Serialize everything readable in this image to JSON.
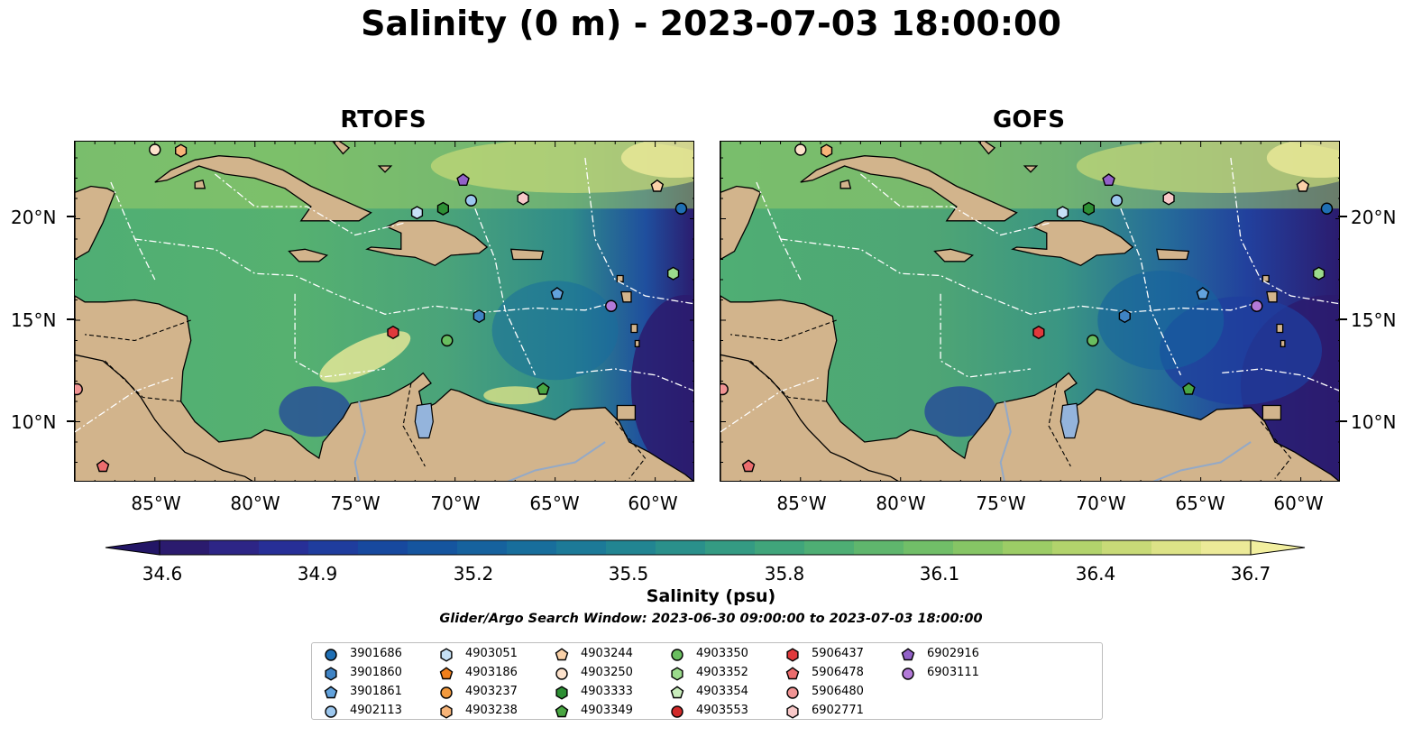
{
  "title": "Salinity (0 m) - 2023-07-03 18:00:00",
  "panels": [
    {
      "name": "RTOFS"
    },
    {
      "name": "GOFS"
    }
  ],
  "lat_ticks": [
    "20°N",
    "15°N",
    "10°N"
  ],
  "lon_ticks": [
    "85°W",
    "80°W",
    "75°W",
    "70°W",
    "65°W",
    "60°W"
  ],
  "colorbar": {
    "label": "Salinity (psu)",
    "ticks": [
      "34.6",
      "34.9",
      "35.2",
      "35.5",
      "35.8",
      "36.1",
      "36.4",
      "36.7"
    ],
    "colors": [
      "#2b1b6e",
      "#2d2586",
      "#272f97",
      "#1f3d9e",
      "#17499f",
      "#15559f",
      "#16629e",
      "#186e9c",
      "#1c7a98",
      "#228592",
      "#2a908b",
      "#349b83",
      "#40a57b",
      "#4eae74",
      "#5fb66d",
      "#71be68",
      "#86c565",
      "#9ccc66",
      "#b2d36c",
      "#c8da77",
      "#dde387",
      "#ecea98"
    ],
    "under_color": "#231666",
    "over_color": "#f2ef9f"
  },
  "search_window": "Glider/Argo Search Window: 2023-06-30 09:00:00 to 2023-07-03 18:00:00",
  "legend": [
    {
      "id": "3901686",
      "marker": "circle",
      "color": "#1f6fb4"
    },
    {
      "id": "3901860",
      "marker": "hexagon",
      "color": "#3f83c4"
    },
    {
      "id": "3901861",
      "marker": "pentagon",
      "color": "#62a2dc"
    },
    {
      "id": "4902113",
      "marker": "circle",
      "color": "#9cc7ee"
    },
    {
      "id": "4903051",
      "marker": "hexagon",
      "color": "#c6e1f6"
    },
    {
      "id": "4903186",
      "marker": "pentagon",
      "color": "#f07f1b"
    },
    {
      "id": "4903237",
      "marker": "circle",
      "color": "#f39a3e"
    },
    {
      "id": "4903238",
      "marker": "hexagon",
      "color": "#f7b478"
    },
    {
      "id": "4903244",
      "marker": "pentagon",
      "color": "#fad1a8"
    },
    {
      "id": "4903250",
      "marker": "circle",
      "color": "#fde2cc"
    },
    {
      "id": "4903333",
      "marker": "hexagon",
      "color": "#2d8f34"
    },
    {
      "id": "4903349",
      "marker": "pentagon",
      "color": "#49a642"
    },
    {
      "id": "4903350",
      "marker": "circle",
      "color": "#69be5f"
    },
    {
      "id": "4903352",
      "marker": "hexagon",
      "color": "#9bdb8c"
    },
    {
      "id": "4903354",
      "marker": "pentagon",
      "color": "#c9edbc"
    },
    {
      "id": "4903553",
      "marker": "circle",
      "color": "#d12a2a"
    },
    {
      "id": "5906437",
      "marker": "hexagon",
      "color": "#e0393c"
    },
    {
      "id": "5906478",
      "marker": "pentagon",
      "color": "#ec6d6e"
    },
    {
      "id": "5906480",
      "marker": "circle",
      "color": "#f19494"
    },
    {
      "id": "6902771",
      "marker": "hexagon",
      "color": "#f8c8c8"
    },
    {
      "id": "6902916",
      "marker": "pentagon",
      "color": "#9261c8"
    },
    {
      "id": "6903111",
      "marker": "circle",
      "color": "#b37ad8"
    }
  ],
  "floats_on_map": [
    {
      "id": "4903250",
      "lon": -85.0,
      "lat": 23.4
    },
    {
      "id": "4903238",
      "lon": -83.7,
      "lat": 23.35
    },
    {
      "id": "6902916",
      "lon": -69.6,
      "lat": 21.9
    },
    {
      "id": "4902113",
      "lon": -69.2,
      "lat": 20.9
    },
    {
      "id": "6902771",
      "lon": -66.6,
      "lat": 21.0
    },
    {
      "id": "4903051",
      "lon": -71.9,
      "lat": 20.3
    },
    {
      "id": "4903333",
      "lon": -70.6,
      "lat": 20.5
    },
    {
      "id": "4903244",
      "lon": -59.9,
      "lat": 21.6
    },
    {
      "id": "3901686",
      "lon": -58.7,
      "lat": 20.5
    },
    {
      "id": "4903352",
      "lon": -59.1,
      "lat": 17.3
    },
    {
      "id": "3901861",
      "lon": -64.9,
      "lat": 16.3
    },
    {
      "id": "3901860",
      "lon": -68.8,
      "lat": 15.2
    },
    {
      "id": "6903111",
      "lon": -62.2,
      "lat": 15.7
    },
    {
      "id": "5906437",
      "lon": -73.1,
      "lat": 14.4
    },
    {
      "id": "4903350",
      "lon": -70.4,
      "lat": 14.0
    },
    {
      "id": "4903349",
      "lon": -65.6,
      "lat": 11.6
    },
    {
      "id": "5906480",
      "lon": -88.9,
      "lat": 11.6
    },
    {
      "id": "5906478",
      "lon": -87.6,
      "lat": 7.8
    }
  ]
}
